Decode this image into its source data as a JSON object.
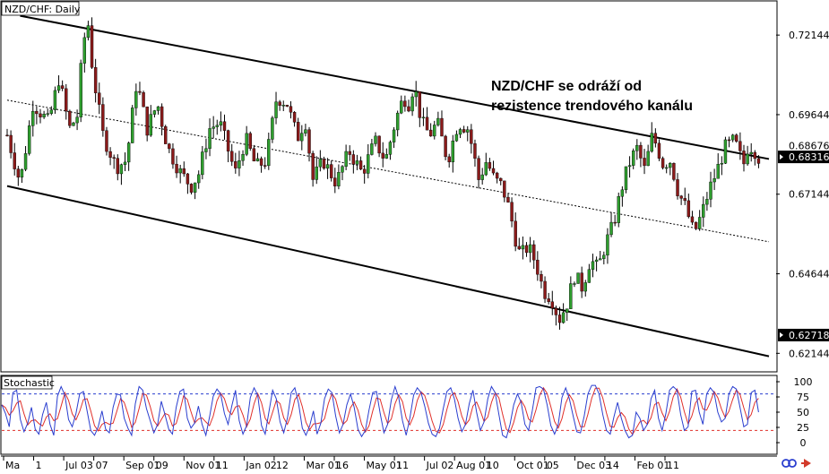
{
  "header": {
    "symbol_label": "NZD/CHF: Daily",
    "indicator_label": "Stochastic"
  },
  "annotation": {
    "line1": "NZD/CHF se odráží od",
    "line2": "rezistence trendového kanálu"
  },
  "colors": {
    "bull": "#2e9e2e",
    "bear": "#8b1a1a",
    "wick": "#000000",
    "channel": "#000000",
    "stoch_main": "#2a3ecf",
    "stoch_signal": "#e0302a",
    "level_high": "#2a3ecf",
    "level_low": "#e0302a",
    "price_box": "#000000",
    "price_text": "#ffffff"
  },
  "chart_data": [
    {
      "type": "candlestick",
      "title": "NZD/CHF: Daily",
      "ylim": [
        0.6159,
        0.7319
      ],
      "y_ticks": [
        "0.72144",
        "0.69644",
        "0.67144",
        "0.64644",
        "0.62144"
      ],
      "price_labels": [
        {
          "text": "0.68676",
          "value": 0.68676,
          "boxed": false
        },
        {
          "text": "0.68316",
          "value": 0.68316,
          "boxed": true
        },
        {
          "text": "0.62718",
          "value": 0.62718,
          "boxed": true
        }
      ],
      "x_labels": [
        "Ma",
        "1",
        "Jul 03",
        "07",
        "Sep 01",
        "09",
        "Nov 01",
        "11",
        "Jan 02",
        "12",
        "Mar 01",
        "16",
        "May 01",
        "11",
        "Jul 02",
        "Aug 01",
        "10",
        "Oct 01",
        "05",
        "Dec 03",
        "14",
        "Feb 01",
        "11"
      ],
      "anchors": [
        [
          0,
          0.69
        ],
        [
          0.05,
          0.675
        ],
        [
          0.1,
          0.7
        ],
        [
          0.16,
          0.694
        ],
        [
          0.2,
          0.708
        ],
        [
          0.24,
          0.692
        ],
        [
          0.27,
          0.696
        ],
        [
          0.29,
          0.716
        ],
        [
          0.31,
          0.727
        ],
        [
          0.33,
          0.71
        ],
        [
          0.37,
          0.69
        ],
        [
          0.42,
          0.68
        ],
        [
          0.46,
          0.682
        ],
        [
          0.5,
          0.707
        ],
        [
          0.54,
          0.692
        ],
        [
          0.58,
          0.7
        ],
        [
          0.62,
          0.686
        ],
        [
          0.67,
          0.678
        ],
        [
          0.71,
          0.674
        ],
        [
          0.74,
          0.678
        ],
        [
          0.78,
          0.692
        ],
        [
          0.82,
          0.694
        ],
        [
          0.88,
          0.678
        ],
        [
          0.92,
          0.689
        ],
        [
          0.96,
          0.68
        ],
        [
          1.0,
          0.682
        ],
        [
          1.04,
          0.702
        ],
        [
          1.08,
          0.7
        ],
        [
          1.12,
          0.689
        ],
        [
          1.15,
          0.695
        ],
        [
          1.18,
          0.676
        ],
        [
          1.22,
          0.682
        ],
        [
          1.27,
          0.675
        ],
        [
          1.32,
          0.685
        ],
        [
          1.37,
          0.678
        ],
        [
          1.42,
          0.688
        ],
        [
          1.46,
          0.682
        ],
        [
          1.5,
          0.695
        ],
        [
          1.53,
          0.702
        ],
        [
          1.55,
          0.7
        ],
        [
          1.57,
          0.706
        ],
        [
          1.6,
          0.694
        ],
        [
          1.63,
          0.69
        ],
        [
          1.66,
          0.694
        ],
        [
          1.7,
          0.682
        ],
        [
          1.74,
          0.694
        ],
        [
          1.78,
          0.692
        ],
        [
          1.82,
          0.676
        ],
        [
          1.85,
          0.682
        ],
        [
          1.88,
          0.676
        ],
        [
          1.91,
          0.674
        ],
        [
          1.94,
          0.666
        ],
        [
          1.96,
          0.658
        ],
        [
          1.98,
          0.652
        ],
        [
          2.01,
          0.655
        ],
        [
          2.04,
          0.65
        ],
        [
          2.07,
          0.641
        ],
        [
          2.1,
          0.639
        ],
        [
          2.13,
          0.632
        ],
        [
          2.16,
          0.637
        ],
        [
          2.19,
          0.646
        ],
        [
          2.22,
          0.642
        ],
        [
          2.25,
          0.651
        ],
        [
          2.28,
          0.648
        ],
        [
          2.31,
          0.656
        ],
        [
          2.34,
          0.662
        ],
        [
          2.37,
          0.673
        ],
        [
          2.4,
          0.681
        ],
        [
          2.43,
          0.686
        ],
        [
          2.46,
          0.679
        ],
        [
          2.49,
          0.69
        ],
        [
          2.51,
          0.686
        ],
        [
          2.53,
          0.681
        ],
        [
          2.56,
          0.682
        ],
        [
          2.59,
          0.672
        ],
        [
          2.62,
          0.667
        ],
        [
          2.65,
          0.659
        ],
        [
          2.68,
          0.665
        ],
        [
          2.71,
          0.673
        ],
        [
          2.74,
          0.679
        ],
        [
          2.77,
          0.686
        ],
        [
          2.8,
          0.688
        ],
        [
          2.82,
          0.686
        ],
        [
          2.84,
          0.68
        ],
        [
          2.86,
          0.687
        ],
        [
          2.88,
          0.686
        ],
        [
          2.9,
          0.683
        ]
      ],
      "candle_count": 205,
      "lines": [
        {
          "name": "channel-resistance",
          "points": [
            [
              0.05,
              0.7275
            ],
            [
              2.94,
              0.6825
            ]
          ],
          "style": "solid"
        },
        {
          "name": "channel-midline",
          "points": [
            [
              0,
              0.701
            ],
            [
              2.94,
              0.6565
            ]
          ],
          "style": "dotted"
        },
        {
          "name": "channel-support",
          "points": [
            [
              0,
              0.674
            ],
            [
              2.94,
              0.6205
            ]
          ],
          "style": "solid"
        }
      ]
    },
    {
      "type": "line",
      "title": "Stochastic",
      "ylim": [
        0,
        100
      ],
      "y_ticks": [
        "100",
        "75",
        "50",
        "25",
        "0"
      ],
      "levels": [
        80,
        20
      ],
      "main": [
        62,
        48,
        26,
        82,
        86,
        38,
        18,
        32,
        58,
        22,
        14,
        46,
        66,
        30,
        12,
        76,
        92,
        78,
        38,
        26,
        48,
        80,
        84,
        52,
        20,
        12,
        26,
        52,
        22,
        16,
        58,
        80,
        78,
        40,
        24,
        12,
        64,
        92,
        86,
        56,
        36,
        16,
        30,
        68,
        46,
        22,
        14,
        58,
        84,
        88,
        40,
        24,
        32,
        60,
        30,
        12,
        42,
        76,
        88,
        80,
        48,
        30,
        60,
        86,
        36,
        14,
        28,
        74,
        90,
        78,
        28,
        14,
        50,
        86,
        72,
        34,
        16,
        40,
        82,
        90,
        64,
        24,
        12,
        28,
        52,
        14,
        32,
        72,
        88,
        82,
        44,
        16,
        30,
        62,
        80,
        58,
        22,
        10,
        20,
        54,
        82,
        84,
        48,
        16,
        30,
        70,
        92,
        74,
        36,
        12,
        40,
        78,
        90,
        82,
        60,
        32,
        14,
        10,
        24,
        56,
        84,
        90,
        72,
        40,
        18,
        30,
        64,
        86,
        50,
        20,
        34,
        72,
        92,
        82,
        46,
        12,
        8,
        30,
        62,
        80,
        66,
        30,
        20,
        52,
        90,
        92,
        88,
        62,
        28,
        14,
        30,
        74,
        90,
        72,
        44,
        18,
        16,
        44,
        80,
        94,
        94,
        80,
        46,
        20,
        14,
        42,
        66,
        40,
        20,
        8,
        12,
        50,
        40,
        20,
        30,
        72,
        86,
        40,
        20,
        48,
        86,
        92,
        86,
        46,
        20,
        26,
        84,
        86,
        50,
        30,
        80,
        90,
        82,
        50,
        34,
        40,
        80,
        92,
        88,
        58,
        26,
        30,
        82,
        86,
        50
      ]
    }
  ]
}
